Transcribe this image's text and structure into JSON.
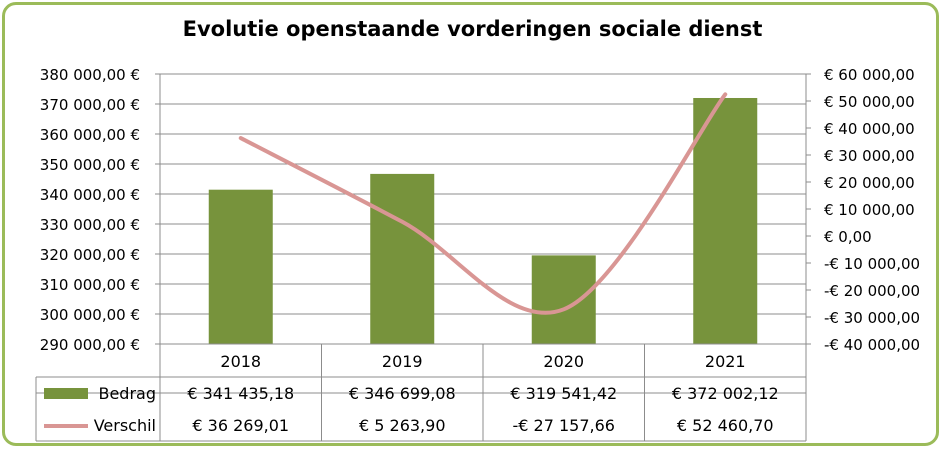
{
  "chart_data": {
    "type": "bar",
    "title": "Evolutie openstaande vorderingen sociale dienst",
    "categories": [
      "2018",
      "2019",
      "2020",
      "2021"
    ],
    "series": [
      {
        "name": "Bedrag",
        "type": "bar",
        "axis": "left",
        "color": "#77933c",
        "values": [
          341435.18,
          346699.08,
          319541.42,
          372002.12
        ],
        "labels": [
          "€ 341 435,18",
          "€ 346 699,08",
          "€ 319 541,42",
          "€ 372 002,12"
        ]
      },
      {
        "name": "Verschil",
        "type": "line",
        "axis": "right",
        "color": "#d99694",
        "values": [
          36269.01,
          5263.9,
          -27157.66,
          52460.7
        ],
        "labels": [
          "€ 36 269,01",
          "€ 5 263,90",
          "-€ 27 157,66",
          "€ 52 460,70"
        ]
      }
    ],
    "y_left": {
      "ylim": [
        290000,
        380000
      ],
      "ticks": [
        380000,
        370000,
        360000,
        350000,
        340000,
        330000,
        320000,
        310000,
        300000,
        290000
      ],
      "tick_labels": [
        "380 000,00 €",
        "370 000,00 €",
        "360 000,00 €",
        "350 000,00 €",
        "340 000,00 €",
        "330 000,00 €",
        "320 000,00 €",
        "310 000,00 €",
        "300 000,00 €",
        "290 000,00 €"
      ]
    },
    "y_right": {
      "ylim": [
        -40000,
        60000
      ],
      "ticks": [
        60000,
        50000,
        40000,
        30000,
        20000,
        10000,
        0,
        -10000,
        -20000,
        -30000,
        -40000
      ],
      "tick_labels": [
        "€ 60 000,00",
        "€ 50 000,00",
        "€ 40 000,00",
        "€ 30 000,00",
        "€ 20 000,00",
        "€ 10 000,00",
        "€  0,00",
        "-€ 10 000,00",
        "-€ 20 000,00",
        "-€ 30 000,00",
        "-€ 40 000,00"
      ]
    },
    "grid": true,
    "legend": "data-table"
  }
}
